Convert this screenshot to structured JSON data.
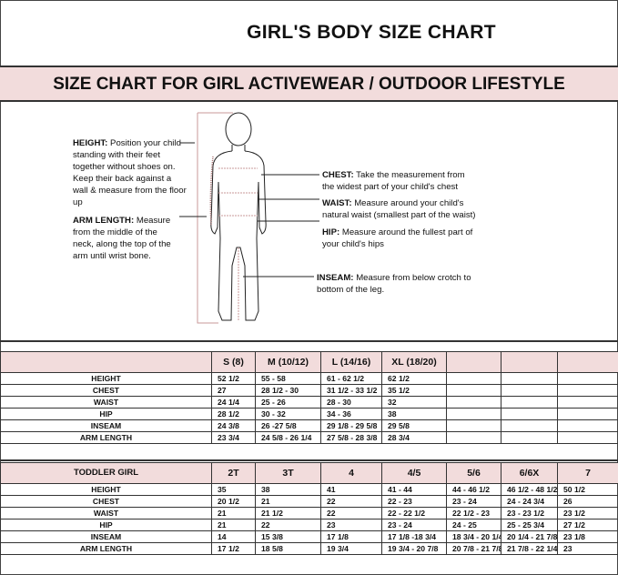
{
  "title": "GIRL'S BODY SIZE CHART",
  "subtitle": "SIZE CHART FOR GIRL ACTIVEWEAR / OUTDOOR LIFESTYLE",
  "colors": {
    "band": "#f2dcdc",
    "guide_line": "#c89a9a"
  },
  "notes": {
    "height": {
      "term": "HEIGHT:",
      "text": "Position your child standing with their feet together without shoes on. Keep their back against a wall & measure from the floor up"
    },
    "arm": {
      "term": "ARM LENGTH:",
      "text": "Measure from the middle of the neck, along the top of the arm until wrist bone."
    },
    "chest": {
      "term": "CHEST:",
      "text": "Take the measurement from the widest part of your child's chest"
    },
    "waist": {
      "term": "WAIST:",
      "text": "Measure around your child's natural waist (smallest part of the waist)"
    },
    "hip": {
      "term": "HIP:",
      "text": "Measure around the fullest part of your child's hips"
    },
    "inseam": {
      "term": "INSEAM:",
      "text": "Measure from below crotch to bottom of the leg."
    }
  },
  "girl_table": {
    "header": [
      "",
      "S (8)",
      "M (10/12)",
      "L (14/16)",
      "XL (18/20)",
      "",
      "",
      ""
    ],
    "rows": [
      [
        "HEIGHT",
        "52 1/2",
        "55 - 58",
        "61 -  62 1/2",
        "62 1/2",
        "",
        "",
        ""
      ],
      [
        "CHEST",
        "27",
        "28 1/2 - 30",
        "31 1/2 - 33 1/2",
        "35 1/2",
        "",
        "",
        ""
      ],
      [
        "WAIST",
        "24 1/4",
        "25  - 26",
        "28 - 30",
        "32",
        "",
        "",
        ""
      ],
      [
        "HIP",
        "28 1/2",
        "30 - 32",
        "34 - 36",
        "38",
        "",
        "",
        ""
      ],
      [
        "INSEAM",
        "24 3/8",
        "26 -27 5/8",
        "29 1/8 - 29 5/8",
        "29 5/8",
        "",
        "",
        ""
      ],
      [
        "ARM LENGTH",
        "23 3/4",
        "24 5/8 - 26 1/4",
        "27 5/8  - 28 3/8",
        "28 3/4",
        "",
        "",
        ""
      ]
    ]
  },
  "toddler_table": {
    "header": [
      "TODDLER GIRL",
      "2T",
      "3T",
      "4",
      "4/5",
      "5/6",
      "6/6X",
      "7"
    ],
    "rows": [
      [
        "HEIGHT",
        "35",
        "38",
        "41",
        "41 - 44",
        "44  -  46 1/2",
        "46 1/2 - 48 1/2",
        "50 1/2"
      ],
      [
        "CHEST",
        "20 1/2",
        "21",
        "22",
        "22 - 23",
        "23 - 24",
        "24 -  24 3/4",
        "26"
      ],
      [
        "WAIST",
        "21",
        "21 1/2",
        "22",
        "22 - 22 1/2",
        "22 1/2 - 23",
        "23 - 23 1/2",
        "23 1/2"
      ],
      [
        "HIP",
        "21",
        "22",
        "23",
        "23 - 24",
        "24 - 25",
        "25 - 25 3/4",
        "27 1/2"
      ],
      [
        "INSEAM",
        "14",
        "15 3/8",
        "17 1/8",
        "17 1/8 -18 3/4",
        "18 3/4 - 20 1/4",
        "20 1/4 - 21 7/8",
        "23 1/8"
      ],
      [
        "ARM LENGTH",
        "17 1/2",
        "18 5/8",
        "19 3/4",
        "19 3/4 - 20  7/8",
        "20 7/8 - 21 7/8",
        "21 7/8  - 22 1/4",
        "23"
      ]
    ]
  }
}
